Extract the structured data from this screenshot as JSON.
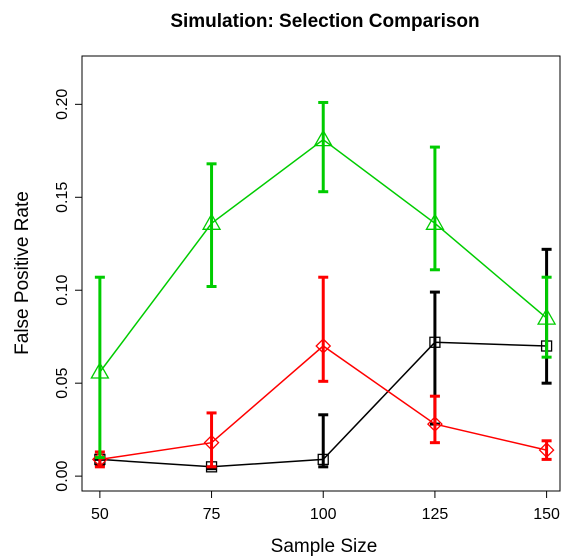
{
  "chart_data": {
    "type": "line",
    "title": "Simulation: Selection Comparison",
    "xlabel": "Sample Size",
    "ylabel": "False Positive Rate",
    "x": [
      50,
      75,
      100,
      125,
      150
    ],
    "xticks": [
      "50",
      "75",
      "100",
      "125",
      "150"
    ],
    "yticks": [
      "0.00",
      "0.05",
      "0.10",
      "0.15",
      "0.20"
    ],
    "ytick_values": [
      0,
      0.05,
      0.1,
      0.15,
      0.2
    ],
    "xlim": [
      46,
      153
    ],
    "ylim": [
      -0.008,
      0.226
    ],
    "grid": false,
    "series": [
      {
        "color": "#000000",
        "marker": "square",
        "values": [
          0.009,
          0.005,
          0.009,
          0.072,
          0.07
        ],
        "lower": [
          0.006,
          0.004,
          0.005,
          0.028,
          0.05
        ],
        "upper": [
          0.009,
          0.005,
          0.033,
          0.099,
          0.122
        ]
      },
      {
        "color": "#ff0000",
        "marker": "diamond",
        "values": [
          0.009,
          0.018,
          0.07,
          0.028,
          0.014
        ],
        "lower": [
          0.005,
          0.005,
          0.051,
          0.018,
          0.009
        ],
        "upper": [
          0.013,
          0.034,
          0.107,
          0.043,
          0.019
        ]
      },
      {
        "color": "#00cc00",
        "marker": "triangle",
        "values": [
          0.056,
          0.136,
          0.181,
          0.136,
          0.085
        ],
        "lower": [
          0.01,
          0.102,
          0.153,
          0.111,
          0.064
        ],
        "upper": [
          0.107,
          0.168,
          0.201,
          0.177,
          0.107
        ]
      }
    ]
  }
}
